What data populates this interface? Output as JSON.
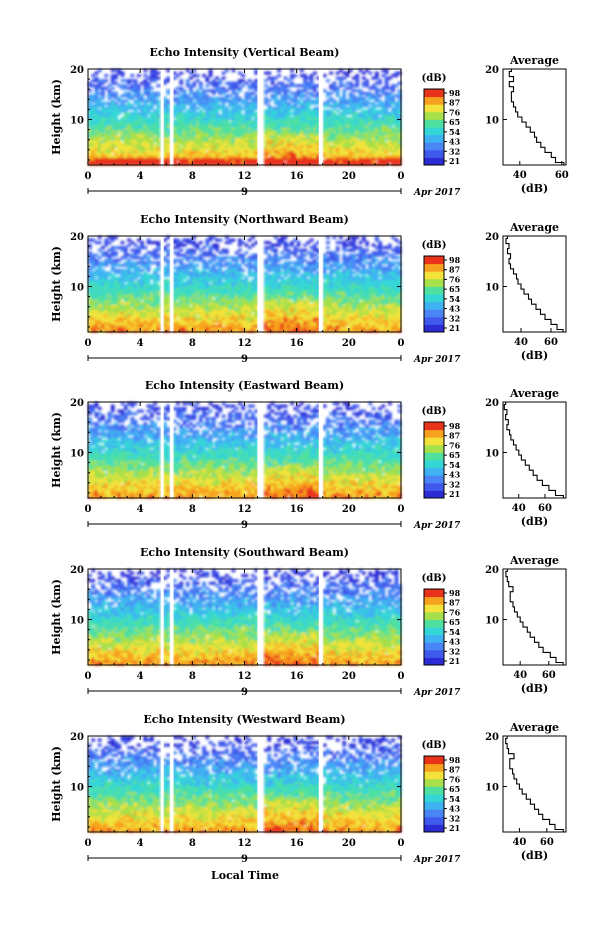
{
  "figure": {
    "x_axis_title": "Local Time",
    "colorbar_unit": "(dB)",
    "colorbar_ticks": [
      "98",
      "87",
      "76",
      "65",
      "54",
      "43",
      "32",
      "21"
    ],
    "date_label": "Apr 2017",
    "date_day": "9",
    "palette": [
      "#2b2cd6",
      "#3f59ec",
      "#4a85f5",
      "#3fb2f2",
      "#35d6d6",
      "#4fe0a0",
      "#a6e04a",
      "#f2e23a",
      "#f7a21e",
      "#e8321a"
    ],
    "nodata_color": "#ffffff"
  },
  "chart_data": [
    {
      "type": "heatmap",
      "title": "Echo Intensity (Vertical Beam)",
      "xlabel": "",
      "ylabel": "Height (km)",
      "x_ticks": [
        "0",
        "4",
        "8",
        "12",
        "16",
        "20",
        "0"
      ],
      "y_ticks": [
        "20",
        "10"
      ],
      "xlim": [
        0,
        24
      ],
      "ylim": [
        1,
        20
      ],
      "gaps_hours": [
        [
          5.6,
          5.8
        ],
        [
          6.3,
          6.55
        ],
        [
          13.0,
          13.4
        ],
        [
          17.7,
          18.0
        ]
      ],
      "color_range_db": [
        21,
        98
      ],
      "average_profile": {
        "title": "Average",
        "xlabel": "(dB)",
        "x_ticks": [
          "40",
          "60"
        ],
        "xlim": [
          32,
          62
        ],
        "y_ticks": [
          "20",
          "10"
        ],
        "height_km": [
          1,
          2,
          3,
          4,
          5,
          6,
          7,
          8,
          9,
          10,
          11,
          12,
          13,
          14,
          15,
          16,
          17,
          18,
          19,
          20
        ],
        "intensity_db": [
          61,
          57,
          55,
          52,
          50,
          48,
          47,
          45,
          43,
          41,
          39,
          38,
          37,
          36,
          36,
          37,
          35,
          37,
          35,
          36
        ]
      }
    },
    {
      "type": "heatmap",
      "title": "Echo Intensity (Northward Beam)",
      "xlabel": "",
      "ylabel": "Height (km)",
      "x_ticks": [
        "0",
        "4",
        "8",
        "12",
        "16",
        "20",
        "0"
      ],
      "y_ticks": [
        "20",
        "10"
      ],
      "xlim": [
        0,
        24
      ],
      "ylim": [
        1,
        20
      ],
      "gaps_hours": [
        [
          5.6,
          5.8
        ],
        [
          6.3,
          6.55
        ],
        [
          13.0,
          13.4
        ],
        [
          17.7,
          18.0
        ]
      ],
      "color_range_db": [
        21,
        98
      ],
      "average_profile": {
        "title": "Average",
        "xlabel": "(dB)",
        "x_ticks": [
          "40",
          "60"
        ],
        "xlim": [
          28,
          70
        ],
        "y_ticks": [
          "20",
          "10"
        ],
        "height_km": [
          1,
          2,
          3,
          4,
          5,
          6,
          7,
          8,
          9,
          10,
          11,
          12,
          13,
          14,
          15,
          16,
          17,
          18,
          19,
          20
        ],
        "intensity_db": [
          68,
          64,
          60,
          56,
          53,
          50,
          47,
          45,
          42,
          40,
          38,
          37,
          35,
          33,
          32,
          33,
          31,
          32,
          30,
          31
        ]
      }
    },
    {
      "type": "heatmap",
      "title": "Echo Intensity (Eastward Beam)",
      "xlabel": "",
      "ylabel": "Height (km)",
      "x_ticks": [
        "0",
        "4",
        "8",
        "12",
        "16",
        "20",
        "0"
      ],
      "y_ticks": [
        "20",
        "10"
      ],
      "xlim": [
        0,
        24
      ],
      "ylim": [
        1,
        20
      ],
      "gaps_hours": [
        [
          5.6,
          5.8
        ],
        [
          6.3,
          6.55
        ],
        [
          13.0,
          13.4
        ],
        [
          17.7,
          18.0
        ]
      ],
      "color_range_db": [
        21,
        98
      ],
      "average_profile": {
        "title": "Average",
        "xlabel": "(dB)",
        "x_ticks": [
          "40",
          "60"
        ],
        "xlim": [
          28,
          76
        ],
        "y_ticks": [
          "20",
          "10"
        ],
        "height_km": [
          1,
          2,
          3,
          4,
          5,
          6,
          7,
          8,
          9,
          10,
          11,
          12,
          13,
          14,
          15,
          16,
          17,
          18,
          19,
          20
        ],
        "intensity_db": [
          74,
          68,
          63,
          58,
          54,
          51,
          48,
          45,
          42,
          40,
          38,
          36,
          34,
          33,
          31,
          32,
          30,
          31,
          29,
          30
        ]
      }
    },
    {
      "type": "heatmap",
      "title": "Echo Intensity (Southward Beam)",
      "xlabel": "",
      "ylabel": "Height (km)",
      "x_ticks": [
        "0",
        "4",
        "8",
        "12",
        "16",
        "20",
        "0"
      ],
      "y_ticks": [
        "20",
        "10"
      ],
      "xlim": [
        0,
        24
      ],
      "ylim": [
        1,
        20
      ],
      "gaps_hours": [
        [
          5.6,
          5.8
        ],
        [
          6.3,
          6.55
        ],
        [
          13.0,
          13.4
        ],
        [
          17.7,
          18.0
        ]
      ],
      "color_range_db": [
        21,
        98
      ],
      "average_profile": {
        "title": "Average",
        "xlabel": "(dB)",
        "x_ticks": [
          "40",
          "60"
        ],
        "xlim": [
          28,
          72
        ],
        "y_ticks": [
          "20",
          "10"
        ],
        "height_km": [
          1,
          2,
          3,
          4,
          5,
          6,
          7,
          8,
          9,
          10,
          11,
          12,
          13,
          14,
          15,
          16,
          17,
          18,
          19,
          20
        ],
        "intensity_db": [
          70,
          65,
          61,
          56,
          53,
          50,
          47,
          45,
          42,
          40,
          38,
          36,
          35,
          33,
          33,
          35,
          32,
          31,
          30,
          31
        ]
      }
    },
    {
      "type": "heatmap",
      "title": "Echo Intensity (Westward Beam)",
      "xlabel": "Local Time",
      "ylabel": "Height (km)",
      "x_ticks": [
        "0",
        "4",
        "8",
        "12",
        "16",
        "20",
        "0"
      ],
      "y_ticks": [
        "20",
        "10"
      ],
      "xlim": [
        0,
        24
      ],
      "ylim": [
        1,
        20
      ],
      "gaps_hours": [
        [
          5.6,
          5.8
        ],
        [
          6.3,
          6.55
        ],
        [
          13.0,
          13.4
        ],
        [
          17.7,
          18.0
        ]
      ],
      "color_range_db": [
        21,
        98
      ],
      "average_profile": {
        "title": "Average",
        "xlabel": "(dB)",
        "x_ticks": [
          "40",
          "60"
        ],
        "xlim": [
          28,
          74
        ],
        "y_ticks": [
          "20",
          "10"
        ],
        "height_km": [
          1,
          2,
          3,
          4,
          5,
          6,
          7,
          8,
          9,
          10,
          11,
          12,
          13,
          14,
          15,
          16,
          17,
          18,
          19,
          20
        ],
        "intensity_db": [
          72,
          66,
          62,
          57,
          54,
          51,
          48,
          45,
          42,
          40,
          38,
          36,
          35,
          33,
          33,
          36,
          32,
          31,
          30,
          31
        ]
      }
    }
  ]
}
